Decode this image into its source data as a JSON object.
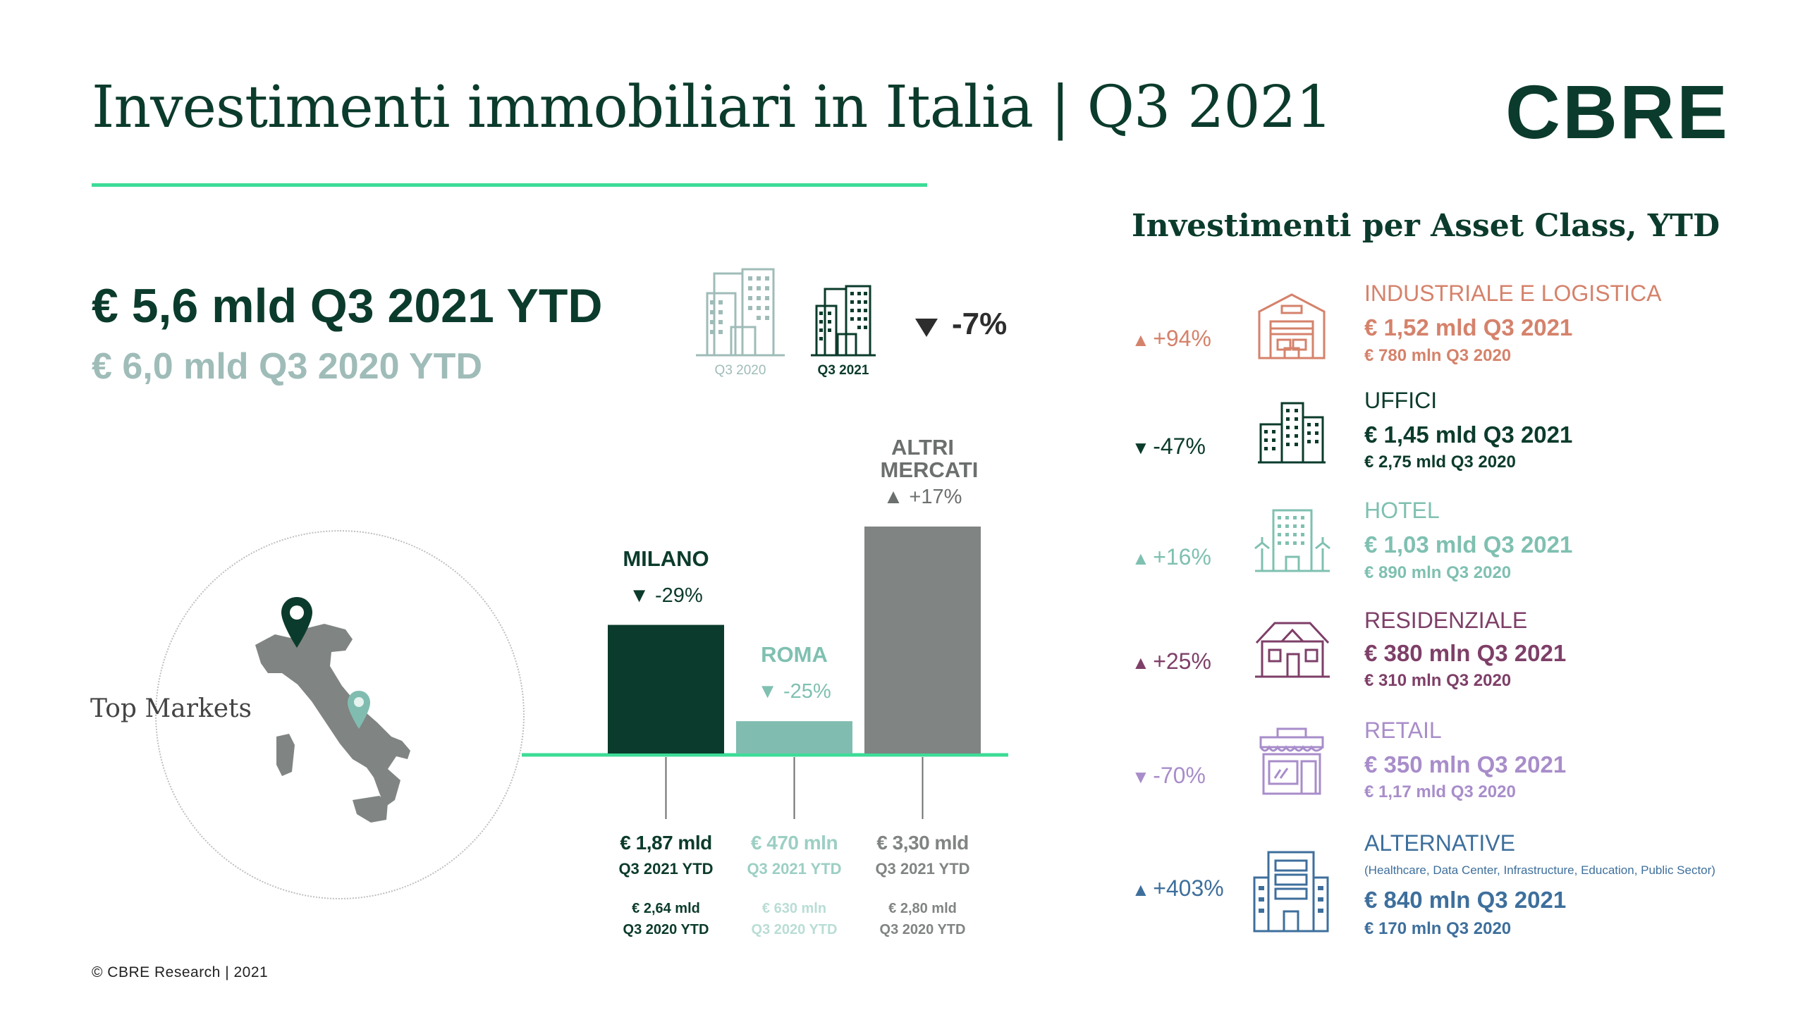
{
  "header": {
    "title": "Investimenti immobiliari in Italia | Q3 2021",
    "logo": "CBRE"
  },
  "summary": {
    "total_2021": "€ 5,6 mld Q3 2021 YTD",
    "total_2020": "€ 6,0 mld Q3 2020 YTD",
    "label_2020": "Q3 2020",
    "label_2021": "Q3 2021",
    "change": "-7%",
    "change_direction": "down"
  },
  "map": {
    "label": "Top Markets"
  },
  "chart_data": {
    "type": "bar",
    "categories": [
      "MILANO",
      "ROMA",
      "ALTRI MERCATI"
    ],
    "values": [
      1.87,
      0.47,
      3.3
    ],
    "unit": "€ mld",
    "changes": [
      "-29%",
      "-25%",
      "+17%"
    ],
    "value_labels_2021": [
      "€ 1,87 mld",
      "€ 470 mln",
      "€ 3,30 mld"
    ],
    "sub_label_2021": "Q3 2021 YTD",
    "value_labels_2020": [
      "€ 2,64 mld",
      "€ 630 mln",
      "€ 2,80 mld"
    ],
    "sub_label_2020": "Q3 2020 YTD",
    "colors": [
      "#0b3b2c",
      "#80bdb0",
      "#808482"
    ],
    "ylim": [
      0,
      3.3
    ]
  },
  "asset_classes": {
    "title": "Investimenti  per Asset Class, YTD",
    "items": [
      {
        "name": "INDUSTRIALE E LOGISTICA",
        "change": "+94%",
        "direction": "up",
        "value_2021": "€ 1,52 mld Q3 2021",
        "value_2020": "€ 780 mln Q3 2020",
        "color": "#d5826b",
        "icon": "warehouse-icon"
      },
      {
        "name": "UFFICI",
        "change": "-47%",
        "direction": "down",
        "value_2021": "€ 1,45 mld Q3 2021",
        "value_2020": "€ 2,75 mld Q3 2020",
        "color": "#0b3b2c",
        "icon": "office-buildings-icon"
      },
      {
        "name": "HOTEL",
        "change": "+16%",
        "direction": "up",
        "value_2021": "€ 1,03 mld Q3 2021",
        "value_2020": "€ 890 mln Q3 2020",
        "color": "#7fc0b1",
        "icon": "hotel-icon"
      },
      {
        "name": "RESIDENZIALE",
        "change": "+25%",
        "direction": "up",
        "value_2021": "€ 380 mln Q3 2021",
        "value_2020": "€ 310 mln Q3 2020",
        "color": "#7e3f68",
        "icon": "house-icon"
      },
      {
        "name": "RETAIL",
        "change": "-70%",
        "direction": "down",
        "value_2021": "€ 350 mln Q3 2021",
        "value_2020": "€ 1,17 mld Q3 2020",
        "color": "#a88dca",
        "icon": "shop-icon"
      },
      {
        "name": "ALTERNATIVE",
        "note": "(Healthcare, Data Center, Infrastructure, Education, Public Sector)",
        "change": "+403%",
        "direction": "up",
        "value_2021": "€ 840 mln Q3 2021",
        "value_2020": "€ 170 mln Q3 2020",
        "color": "#3e6f9c",
        "icon": "server-building-icon"
      }
    ]
  },
  "footer": {
    "copyright": "© CBRE Research | 2021"
  }
}
